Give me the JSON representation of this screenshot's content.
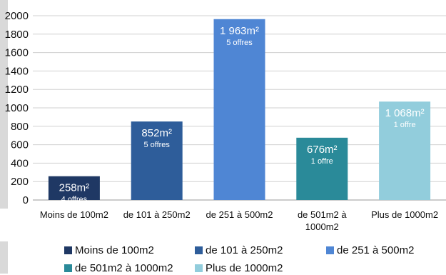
{
  "chart_data": {
    "type": "bar",
    "title": "",
    "xlabel": "",
    "ylabel": "",
    "ylim": [
      0,
      2000
    ],
    "yticks": [
      0,
      200,
      400,
      600,
      800,
      1000,
      1200,
      1400,
      1600,
      1800,
      2000
    ],
    "grid": true,
    "legend_position": "bottom",
    "categories": [
      "Moins de 100m2",
      "de 101 à 250m2",
      "de 251 à 500m2",
      "de 501m2 à 1000m2",
      "Plus de 1000m2"
    ],
    "values": [
      258,
      852,
      1963,
      676,
      1068
    ],
    "value_labels": [
      "258m²",
      "852m²",
      "1 963m²",
      "676m²",
      "1 068m²"
    ],
    "offer_labels": [
      "4 offres",
      "5 offres",
      "5 offres",
      "1 offre",
      "1 offre"
    ],
    "colors": [
      "#1f3864",
      "#2e5d9a",
      "#4f86d4",
      "#2a8a99",
      "#92cddc"
    ],
    "legend": [
      "Moins de 100m2",
      "de 101 à 250m2",
      "de 251 à 500m2",
      "de 501m2 à 1000m2",
      "Plus de 1000m2"
    ]
  }
}
